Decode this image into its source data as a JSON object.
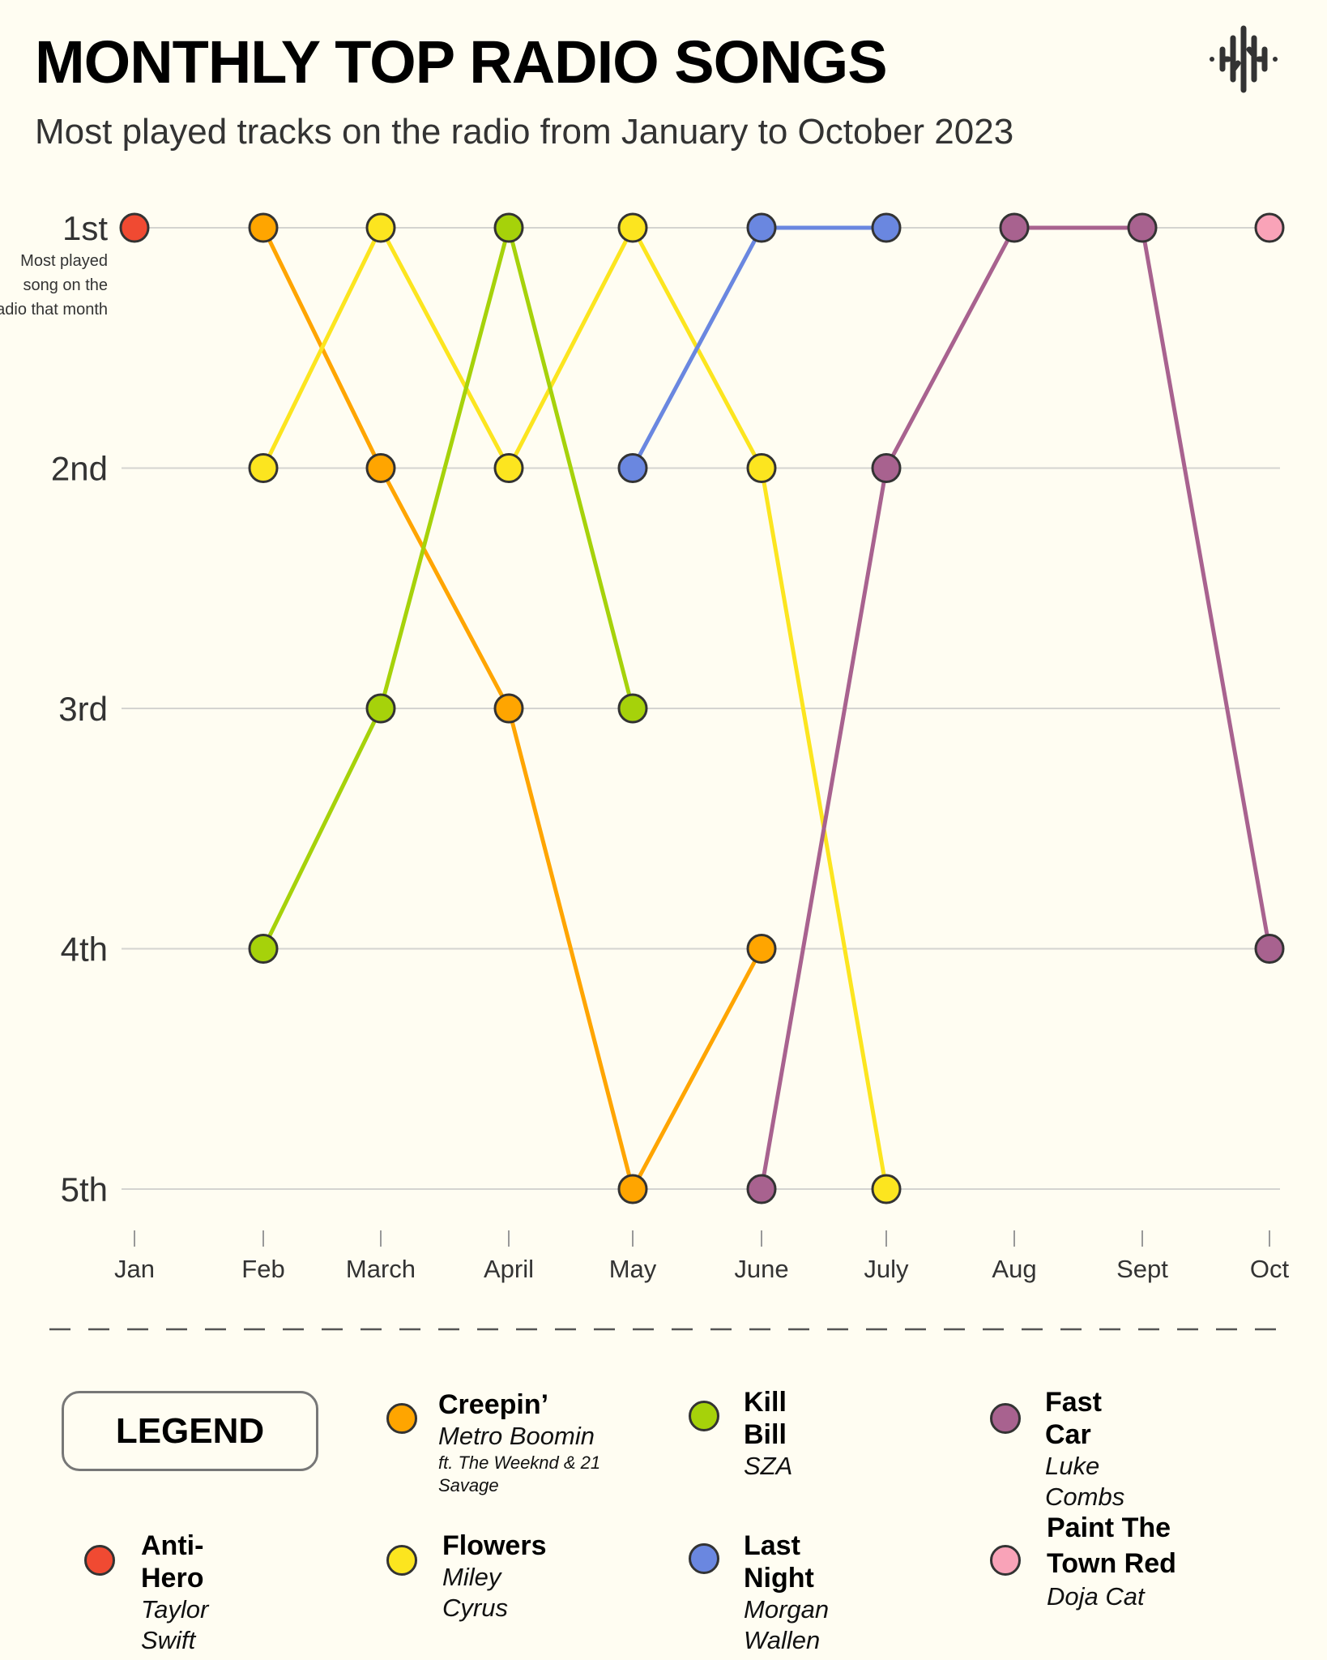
{
  "header": {
    "title": "MONTHLY TOP RADIO SONGS",
    "subtitle": "Most played tracks on the radio from January to October 2023",
    "logo_icon": "sound-wave-icon"
  },
  "chart_data": {
    "type": "line",
    "subtype": "bump",
    "title": "MONTHLY TOP RADIO SONGS",
    "subtitle": "Most played tracks on the radio from January to October 2023",
    "categories": [
      "Jan",
      "Feb",
      "March",
      "April",
      "May",
      "June",
      "July",
      "Aug",
      "Sept",
      "Oct"
    ],
    "y_ticks": [
      "1st",
      "2nd",
      "3rd",
      "4th",
      "5th"
    ],
    "y_note": "Most played song on the radio that month",
    "ylim": [
      1,
      5
    ],
    "y_inverted": true,
    "grid": true,
    "series": [
      {
        "name": "Anti-Hero",
        "artist": "Taylor Swift",
        "color": "#f04a32",
        "values": [
          1,
          null,
          null,
          null,
          null,
          null,
          null,
          null,
          null,
          null
        ]
      },
      {
        "name": "Creepin’",
        "artist": "Metro Boomin",
        "feat": "ft. The Weeknd & 21 Savage",
        "color": "#ffa500",
        "values": [
          null,
          1,
          2,
          3,
          5,
          4,
          null,
          null,
          null,
          null
        ]
      },
      {
        "name": "Flowers",
        "artist": "Miley Cyrus",
        "color": "#fce51f",
        "values": [
          null,
          2,
          1,
          2,
          1,
          2,
          5,
          null,
          null,
          null
        ]
      },
      {
        "name": "Kill Bill",
        "artist": "SZA",
        "color": "#a6d20a",
        "values": [
          null,
          4,
          3,
          1,
          3,
          null,
          null,
          null,
          null,
          null
        ]
      },
      {
        "name": "Last Night",
        "artist": "Morgan Wallen",
        "color": "#6a87e0",
        "values": [
          null,
          null,
          null,
          null,
          2,
          1,
          1,
          null,
          null,
          null
        ]
      },
      {
        "name": "Fast Car",
        "artist": "Luke Combs",
        "color": "#a8628f",
        "values": [
          null,
          null,
          null,
          null,
          null,
          5,
          2,
          1,
          1,
          4
        ]
      },
      {
        "name": "Paint The Town Red",
        "artist": "Doja Cat",
        "color": "#f9a3b8",
        "values": [
          null,
          null,
          null,
          null,
          null,
          null,
          null,
          null,
          null,
          1
        ]
      }
    ],
    "legend": {
      "title": "LEGEND",
      "placement": "bottom"
    }
  }
}
